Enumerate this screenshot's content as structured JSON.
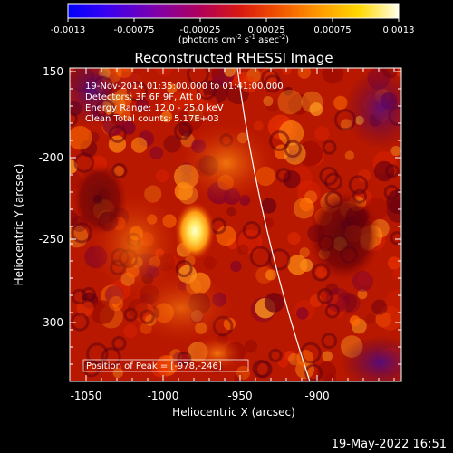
{
  "colorbar": {
    "ticks": [
      "-0.0013",
      "-0.00075",
      "-0.00025",
      "0.00025",
      "0.00075",
      "0.0013"
    ],
    "units_text": "(photons cm",
    "units_exp1": "-2",
    "units_mid": " s",
    "units_exp2": "-1",
    "units_end": " asec",
    "units_exp3": "-2",
    "units_close": ")"
  },
  "plot": {
    "title": "Reconstructed RHESSI Image",
    "info_lines": [
      "19-Nov-2014 01:35:00.000 to 01:41:00.000",
      "Detectors: 3F 6F 9F, Att 0",
      "Energy Range: 12.0 - 25.0 keV",
      "Clean     Total counts: 5.17E+03"
    ],
    "peak_label": "Position of Peak = [-978,-246]",
    "xlabel": "Heliocentric X (arcsec)",
    "ylabel": "Heliocentric Y (arcsec)",
    "x_ticks": [
      "-1050",
      "-1000",
      "-950",
      "-900"
    ],
    "y_ticks": [
      "-150",
      "-200",
      "-250",
      "-300"
    ]
  },
  "footer": {
    "timestamp": "19-May-2022 16:51"
  }
}
